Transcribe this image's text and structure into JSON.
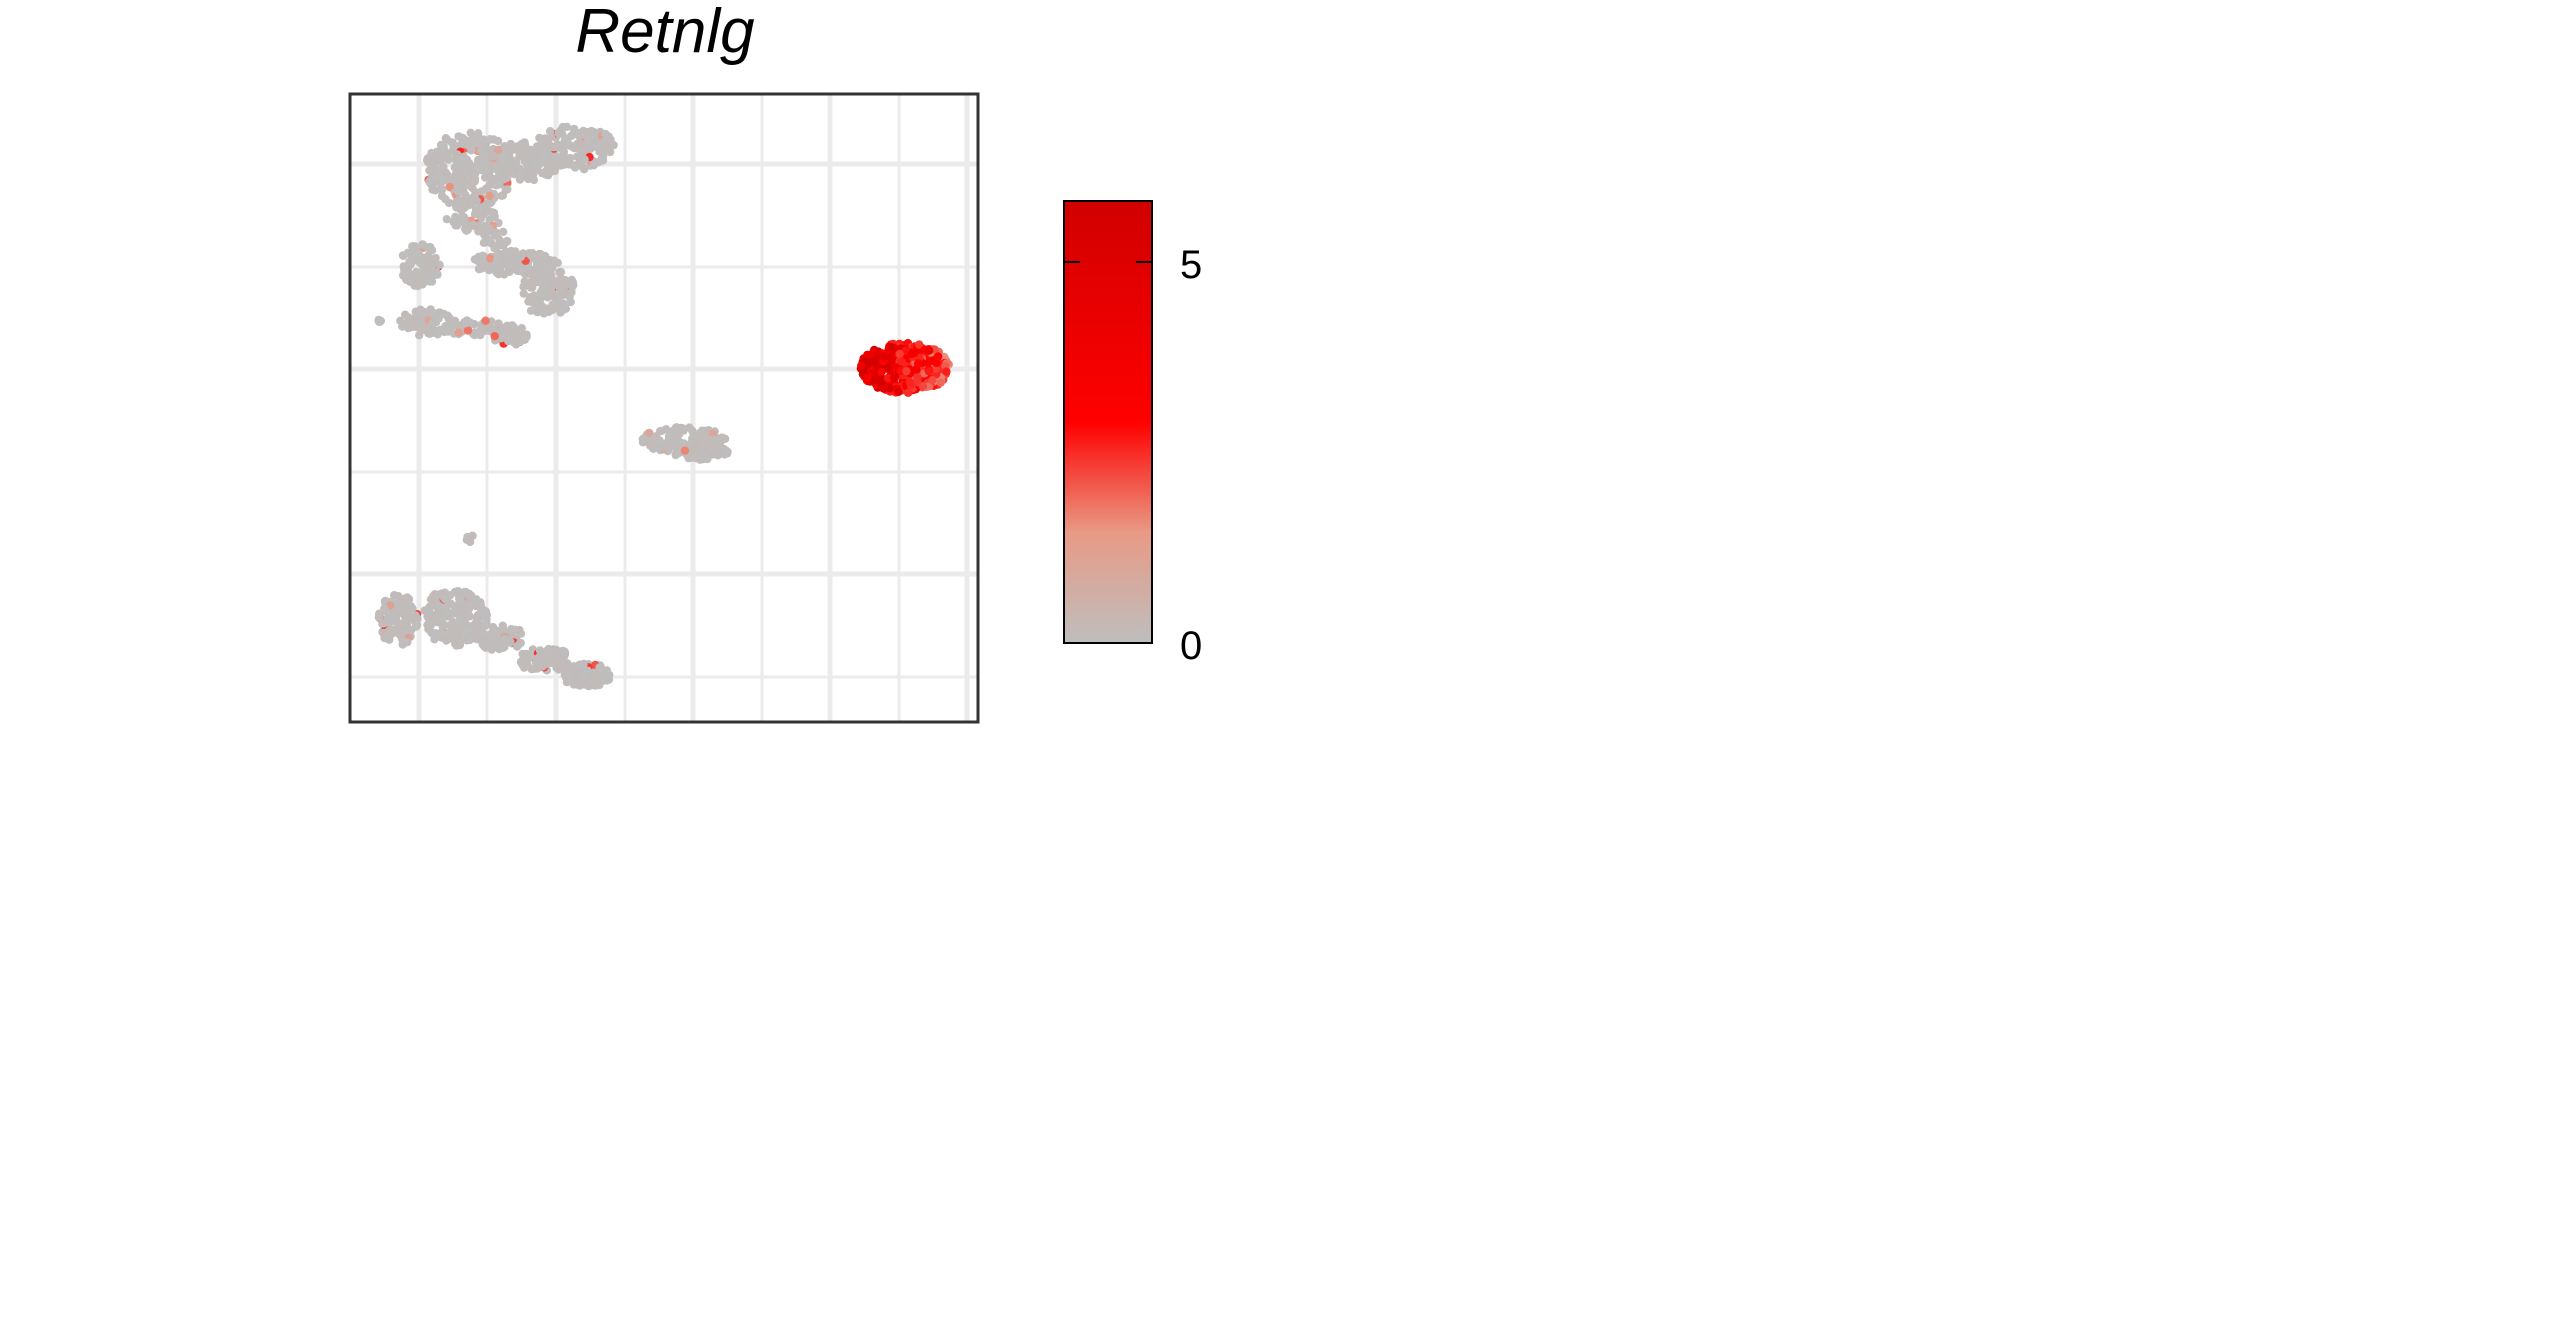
{
  "chart_data": {
    "type": "scatter",
    "title": "Retnlg",
    "xlabel": "",
    "ylabel": "",
    "grid": true,
    "axis_ticks": false,
    "point_color_scale": {
      "name": "",
      "min": 0,
      "max": 5.8,
      "ticks": [
        0,
        5
      ],
      "tick_labels": [
        "0",
        "5"
      ],
      "colors": [
        "#bebebe",
        "#e89a85",
        "#ff0000",
        "#d10000"
      ]
    },
    "clusters": [
      {
        "name": "",
        "expression_level": "low"
      },
      {
        "name": "",
        "expression_level": "low"
      },
      {
        "name": "",
        "expression_level": "low"
      },
      {
        "name": "",
        "expression_level": "low"
      },
      {
        "name": "",
        "expression_level": "high"
      }
    ]
  }
}
